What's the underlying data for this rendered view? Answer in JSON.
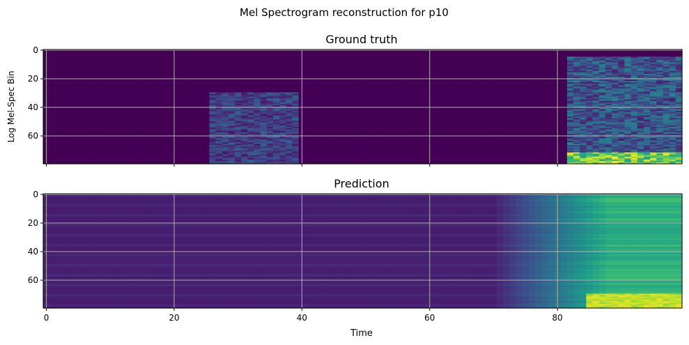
{
  "figure": {
    "suptitle": "Mel Spectrogram reconstruction for p10",
    "shared_xlabel": "Time"
  },
  "colormap": {
    "name": "viridis",
    "stops": [
      "#440154",
      "#482878",
      "#3e4989",
      "#31688e",
      "#26828e",
      "#1f9e89",
      "#35b779",
      "#6ece58",
      "#b5de2b",
      "#fde725"
    ]
  },
  "chart_data": [
    {
      "type": "heatmap",
      "title": "Ground truth",
      "xlabel": "",
      "ylabel": "Log Mel-Spec Bin",
      "xlim": [
        -0.5,
        99.5
      ],
      "ylim": [
        79.5,
        -0.5
      ],
      "xticks": [
        0,
        20,
        40,
        60,
        80
      ],
      "yticks": [
        0,
        20,
        40,
        60
      ],
      "show_xticklabels": false,
      "grid": true,
      "n_time": 100,
      "n_bins": 80,
      "regions": [
        {
          "t_start": 26,
          "t_end": 39,
          "bin_start": 30,
          "bin_end": 79,
          "level": [
            0.06,
            0.32
          ]
        },
        {
          "t_start": 82,
          "t_end": 99,
          "bin_start": 5,
          "bin_end": 79,
          "level": [
            0.08,
            0.45
          ]
        },
        {
          "t_start": 82,
          "t_end": 99,
          "bin_start": 72,
          "bin_end": 79,
          "level": [
            0.55,
            1.0
          ]
        }
      ]
    },
    {
      "type": "heatmap",
      "title": "Prediction",
      "xlabel": "Time",
      "ylabel": "",
      "xlim": [
        -0.5,
        99.5
      ],
      "ylim": [
        79.5,
        -0.5
      ],
      "xticks": [
        0,
        20,
        40,
        60,
        80
      ],
      "yticks": [
        0,
        20,
        40,
        60
      ],
      "show_xticklabels": true,
      "grid": true,
      "n_time": 100,
      "n_bins": 80,
      "baseline_level": 0.07,
      "ramp": {
        "t_start": 70,
        "t_end": 88,
        "level_end": 0.7
      },
      "peak_band": {
        "t_start": 85,
        "bin_start": 70,
        "bin_end": 79,
        "level": 0.97
      }
    }
  ]
}
